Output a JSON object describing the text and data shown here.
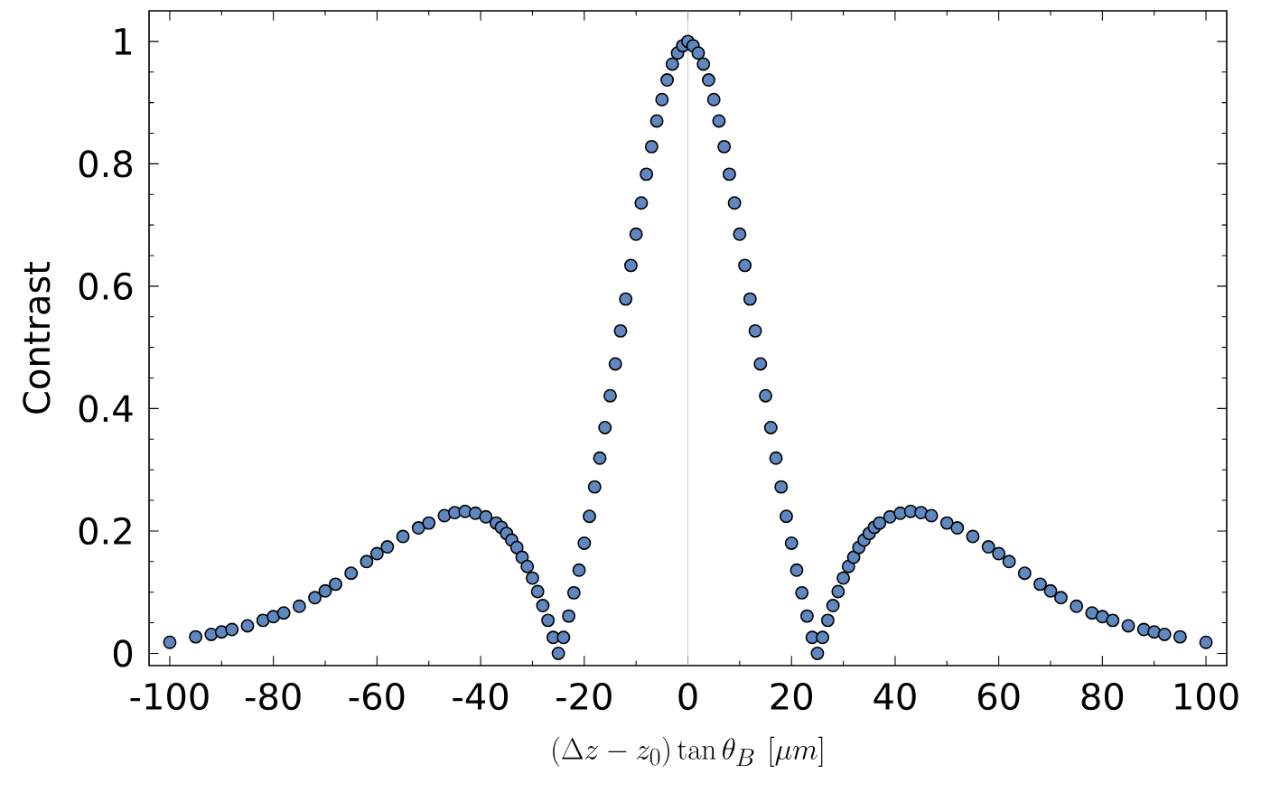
{
  "chart_data": {
    "type": "scatter",
    "xlabel": "(\\Delta z-z_0)\\tan\\theta_B\\ [\\mu m]",
    "ylabel": "Contrast",
    "x": [
      -100,
      -95,
      -92,
      -90,
      -88,
      -85,
      -82,
      -80,
      -78,
      -75,
      -72,
      -70,
      -68,
      -65,
      -62,
      -60,
      -58,
      -55,
      -52,
      -50,
      -47,
      -45,
      -43,
      -41,
      -39,
      -37,
      -36,
      -35,
      -34,
      -33,
      -32,
      -31,
      -30,
      -29,
      -28,
      -27,
      -26,
      -25,
      -24,
      -23,
      -22,
      -21,
      -20,
      -19,
      -18,
      -17,
      -16,
      -15,
      -14,
      -13,
      -12,
      -11,
      -10,
      -9,
      -8,
      -7,
      -6,
      -5,
      -4,
      -3,
      -2,
      -1,
      0,
      1,
      2,
      3,
      4,
      5,
      6,
      7,
      8,
      9,
      10,
      11,
      12,
      13,
      14,
      15,
      16,
      17,
      18,
      19,
      20,
      21,
      22,
      23,
      24,
      25,
      26,
      27,
      28,
      29,
      30,
      31,
      32,
      33,
      34,
      35,
      36,
      37,
      39,
      41,
      43,
      45,
      47,
      50,
      52,
      55,
      58,
      60,
      62,
      65,
      68,
      70,
      72,
      75,
      78,
      80,
      82,
      85,
      88,
      90,
      92,
      95,
      100
    ],
    "values": [
      0.018,
      0.027,
      0.031,
      0.035,
      0.039,
      0.045,
      0.054,
      0.06,
      0.066,
      0.077,
      0.091,
      0.102,
      0.113,
      0.131,
      0.15,
      0.163,
      0.174,
      0.191,
      0.205,
      0.213,
      0.225,
      0.23,
      0.232,
      0.229,
      0.223,
      0.213,
      0.206,
      0.196,
      0.185,
      0.173,
      0.157,
      0.142,
      0.123,
      0.101,
      0.078,
      0.054,
      0.026,
      0.0,
      0.026,
      0.061,
      0.099,
      0.136,
      0.18,
      0.224,
      0.272,
      0.319,
      0.369,
      0.421,
      0.473,
      0.527,
      0.579,
      0.634,
      0.685,
      0.736,
      0.783,
      0.828,
      0.87,
      0.905,
      0.937,
      0.963,
      0.981,
      0.993,
      1.0,
      0.993,
      0.981,
      0.963,
      0.937,
      0.905,
      0.87,
      0.828,
      0.783,
      0.736,
      0.685,
      0.634,
      0.579,
      0.527,
      0.473,
      0.421,
      0.369,
      0.319,
      0.272,
      0.224,
      0.18,
      0.136,
      0.099,
      0.061,
      0.026,
      0.0,
      0.026,
      0.054,
      0.078,
      0.101,
      0.123,
      0.142,
      0.157,
      0.173,
      0.185,
      0.196,
      0.206,
      0.213,
      0.223,
      0.229,
      0.232,
      0.23,
      0.225,
      0.213,
      0.205,
      0.191,
      0.174,
      0.163,
      0.15,
      0.131,
      0.113,
      0.102,
      0.091,
      0.077,
      0.066,
      0.06,
      0.054,
      0.045,
      0.039,
      0.035,
      0.031,
      0.027,
      0.018
    ],
    "color": "#6088c0",
    "marker": "circle",
    "xlim": [
      -104,
      104
    ],
    "ylim": [
      -0.02,
      1.05
    ],
    "xticks": [
      -100,
      -80,
      -60,
      -40,
      -20,
      0,
      20,
      40,
      60,
      80,
      100
    ],
    "yticks": [
      0,
      0.2,
      0.4,
      0.6,
      0.8,
      {
        "value": 1,
        "label": "1"
      }
    ],
    "ref_lines": [
      {
        "axis": "x",
        "value": 0,
        "color": "#c8c8c8"
      }
    ]
  }
}
